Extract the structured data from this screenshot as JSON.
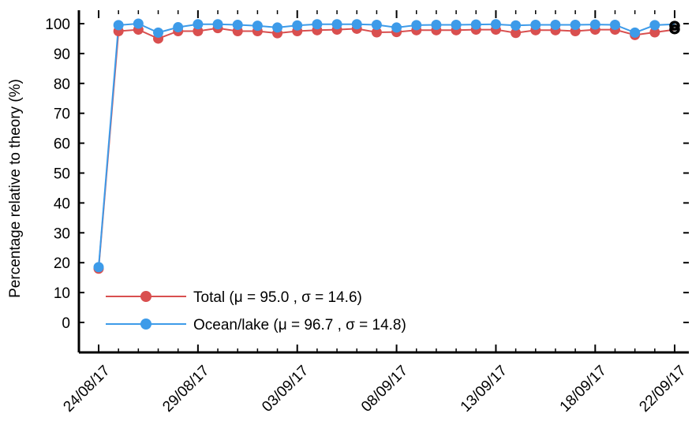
{
  "chart_data": {
    "type": "line",
    "title": "",
    "xlabel": "",
    "ylabel": "Percentage relative to theory (%)",
    "ylim": [
      -10,
      105
    ],
    "y_ticks": [
      0,
      10,
      20,
      30,
      40,
      50,
      60,
      70,
      80,
      90,
      100
    ],
    "x_ticks": [
      "24/08/17",
      "29/08/17",
      "03/09/17",
      "08/09/17",
      "13/09/17",
      "18/09/17",
      "22/09/17"
    ],
    "x_dates": [
      "24/08/17",
      "25/08/17",
      "26/08/17",
      "27/08/17",
      "28/08/17",
      "29/08/17",
      "30/08/17",
      "31/08/17",
      "01/09/17",
      "02/09/17",
      "03/09/17",
      "04/09/17",
      "05/09/17",
      "06/09/17",
      "07/09/17",
      "08/09/17",
      "09/09/17",
      "10/09/17",
      "11/09/17",
      "12/09/17",
      "13/09/17",
      "14/09/17",
      "15/09/17",
      "16/09/17",
      "17/09/17",
      "18/09/17",
      "19/09/17",
      "20/09/17",
      "21/09/17",
      "22/09/17"
    ],
    "grid": false,
    "legend_position": "lower-left",
    "series": [
      {
        "name": "Total (μ = 95.0 , σ = 14.6)",
        "color": "#d94f4f",
        "values": [
          18,
          97.5,
          98,
          95,
          97.5,
          97.5,
          98.5,
          97.5,
          97.5,
          96.8,
          97.5,
          97.8,
          98,
          98.3,
          97.1,
          97.2,
          97.8,
          97.8,
          97.8,
          98,
          98,
          96.9,
          97.8,
          97.8,
          97.5,
          98,
          98,
          96.2,
          97.1,
          98
        ]
      },
      {
        "name": "Ocean/lake (μ = 96.7 , σ = 14.8)",
        "color": "#3d9be9",
        "values": [
          18.5,
          99.5,
          100,
          97,
          98.8,
          99.8,
          99.8,
          99.6,
          99.3,
          98.7,
          99.4,
          99.8,
          99.8,
          99.8,
          99.6,
          98.7,
          99.5,
          99.6,
          99.6,
          99.7,
          99.8,
          99.4,
          99.6,
          99.6,
          99.6,
          99.7,
          99.6,
          97,
          99.5,
          99.8
        ]
      }
    ],
    "end_markers": [
      99.3,
      98.1
    ]
  }
}
